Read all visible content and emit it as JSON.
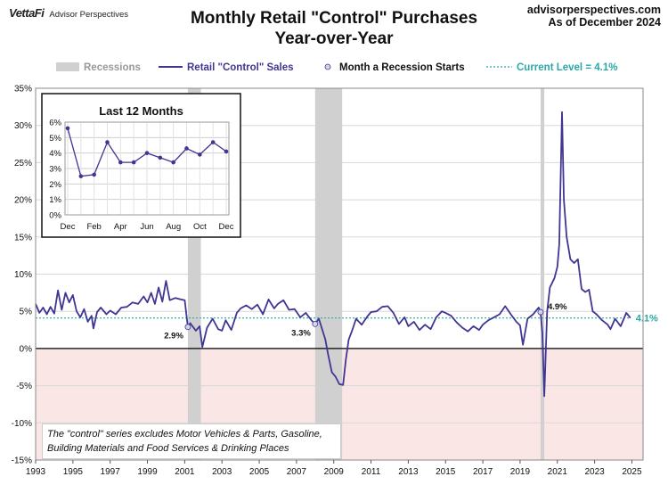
{
  "header": {
    "brand": "VettaFi",
    "brand_sub": "Advisor Perspectives",
    "title_line1": "Monthly Retail \"Control\" Purchases",
    "title_line2": "Year-over-Year",
    "site": "advisorperspectives.com",
    "as_of": "As of December 2024"
  },
  "legend": {
    "recessions": "Recessions",
    "series": "Retail \"Control\" Sales",
    "recession_start": "Month a Recession Starts",
    "current": "Current Level = 4.1%"
  },
  "colors": {
    "series": "#3f3593",
    "recession": "#d0d0d0",
    "current": "#2aa9a6",
    "negative_fill": "#fbe6e6"
  },
  "note": "The \"control\" series excludes Motor Vehicles & Parts, Gasoline, Building Materials and Food Services & Drinking Places",
  "chart_data": [
    {
      "type": "line",
      "title": "Monthly Retail \"Control\" Purchases Year-over-Year",
      "xlabel": "",
      "ylabel": "",
      "xlim": [
        1993,
        2025.6
      ],
      "ylim": [
        -15,
        35
      ],
      "x_ticks": [
        "1993",
        "1995",
        "1997",
        "1999",
        "2001",
        "2003",
        "2005",
        "2007",
        "2009",
        "2011",
        "2013",
        "2015",
        "2017",
        "2019",
        "2021",
        "2023",
        "2025"
      ],
      "y_ticks": [
        "35%",
        "30%",
        "25%",
        "20%",
        "15%",
        "10%",
        "5%",
        "0%",
        "-5%",
        "-10%",
        "-15%"
      ],
      "grid": true,
      "legend_position": "top",
      "recessions": [
        [
          2001.17,
          2001.87
        ],
        [
          2008.0,
          2009.45
        ],
        [
          2020.1,
          2020.3
        ]
      ],
      "recession_start_labels": [
        {
          "x": 2001.17,
          "y": 2.9,
          "label": "2.9%"
        },
        {
          "x": 2008.0,
          "y": 3.3,
          "label": "3.3%"
        },
        {
          "x": 2020.1,
          "y": 4.9,
          "label": "4.9%"
        }
      ],
      "current_level": {
        "value": 4.1,
        "label": "4.1%"
      },
      "series": [
        {
          "name": "Retail \"Control\" Sales",
          "points": [
            [
              1993.0,
              6.0
            ],
            [
              1993.2,
              4.8
            ],
            [
              1993.4,
              5.5
            ],
            [
              1993.6,
              4.6
            ],
            [
              1993.8,
              5.6
            ],
            [
              1994.0,
              4.7
            ],
            [
              1994.2,
              7.8
            ],
            [
              1994.4,
              5.2
            ],
            [
              1994.6,
              7.5
            ],
            [
              1994.8,
              6.2
            ],
            [
              1995.0,
              7.2
            ],
            [
              1995.2,
              5.0
            ],
            [
              1995.4,
              4.2
            ],
            [
              1995.6,
              5.3
            ],
            [
              1995.8,
              3.6
            ],
            [
              1996.0,
              4.4
            ],
            [
              1996.1,
              2.7
            ],
            [
              1996.3,
              4.9
            ],
            [
              1996.5,
              5.5
            ],
            [
              1996.8,
              4.6
            ],
            [
              1997.0,
              5.1
            ],
            [
              1997.3,
              4.6
            ],
            [
              1997.6,
              5.5
            ],
            [
              1997.9,
              5.6
            ],
            [
              1998.2,
              6.2
            ],
            [
              1998.5,
              6.0
            ],
            [
              1998.8,
              7.0
            ],
            [
              1999.0,
              6.2
            ],
            [
              1999.2,
              7.5
            ],
            [
              1999.4,
              6.0
            ],
            [
              1999.6,
              8.2
            ],
            [
              1999.8,
              6.3
            ],
            [
              2000.0,
              9.1
            ],
            [
              2000.2,
              6.5
            ],
            [
              2000.5,
              6.8
            ],
            [
              2000.8,
              6.6
            ],
            [
              2001.0,
              6.5
            ],
            [
              2001.17,
              2.9
            ],
            [
              2001.3,
              3.4
            ],
            [
              2001.6,
              2.4
            ],
            [
              2001.8,
              3.0
            ],
            [
              2001.95,
              0.2
            ],
            [
              2002.2,
              2.8
            ],
            [
              2002.5,
              4.0
            ],
            [
              2002.8,
              2.6
            ],
            [
              2003.0,
              2.4
            ],
            [
              2003.2,
              3.8
            ],
            [
              2003.5,
              2.5
            ],
            [
              2003.8,
              4.8
            ],
            [
              2004.0,
              5.4
            ],
            [
              2004.3,
              5.8
            ],
            [
              2004.6,
              5.3
            ],
            [
              2004.9,
              5.9
            ],
            [
              2005.2,
              4.6
            ],
            [
              2005.5,
              6.6
            ],
            [
              2005.8,
              5.4
            ],
            [
              2006.0,
              6.0
            ],
            [
              2006.3,
              6.5
            ],
            [
              2006.6,
              5.2
            ],
            [
              2006.9,
              5.3
            ],
            [
              2007.2,
              4.2
            ],
            [
              2007.5,
              4.8
            ],
            [
              2007.8,
              3.8
            ],
            [
              2008.0,
              3.3
            ],
            [
              2008.2,
              4.0
            ],
            [
              2008.35,
              2.8
            ],
            [
              2008.55,
              1.2
            ],
            [
              2008.7,
              -0.8
            ],
            [
              2008.9,
              -3.2
            ],
            [
              2009.1,
              -3.8
            ],
            [
              2009.3,
              -4.8
            ],
            [
              2009.5,
              -4.9
            ],
            [
              2009.65,
              -1.5
            ],
            [
              2009.8,
              1.2
            ],
            [
              2010.0,
              2.5
            ],
            [
              2010.2,
              4.0
            ],
            [
              2010.5,
              3.2
            ],
            [
              2010.8,
              4.3
            ],
            [
              2011.0,
              4.9
            ],
            [
              2011.3,
              5.0
            ],
            [
              2011.6,
              5.6
            ],
            [
              2011.9,
              5.7
            ],
            [
              2012.2,
              4.8
            ],
            [
              2012.5,
              3.3
            ],
            [
              2012.8,
              4.2
            ],
            [
              2013.0,
              3.0
            ],
            [
              2013.3,
              3.6
            ],
            [
              2013.6,
              2.5
            ],
            [
              2013.9,
              3.2
            ],
            [
              2014.2,
              2.6
            ],
            [
              2014.5,
              4.2
            ],
            [
              2014.8,
              5.0
            ],
            [
              2015.0,
              4.8
            ],
            [
              2015.3,
              4.4
            ],
            [
              2015.6,
              3.5
            ],
            [
              2015.9,
              2.8
            ],
            [
              2016.2,
              2.3
            ],
            [
              2016.5,
              3.0
            ],
            [
              2016.8,
              2.5
            ],
            [
              2017.0,
              3.2
            ],
            [
              2017.3,
              3.8
            ],
            [
              2017.6,
              4.2
            ],
            [
              2017.9,
              4.6
            ],
            [
              2018.2,
              5.7
            ],
            [
              2018.5,
              4.6
            ],
            [
              2018.8,
              3.6
            ],
            [
              2019.0,
              3.1
            ],
            [
              2019.15,
              0.5
            ],
            [
              2019.4,
              4.0
            ],
            [
              2019.7,
              4.6
            ],
            [
              2020.0,
              5.5
            ],
            [
              2020.1,
              4.9
            ],
            [
              2020.2,
              2.0
            ],
            [
              2020.3,
              -6.4
            ],
            [
              2020.45,
              5.0
            ],
            [
              2020.6,
              8.2
            ],
            [
              2020.85,
              9.5
            ],
            [
              2021.0,
              11.0
            ],
            [
              2021.1,
              14.0
            ],
            [
              2021.2,
              26.0
            ],
            [
              2021.25,
              31.8
            ],
            [
              2021.35,
              20.0
            ],
            [
              2021.5,
              15.0
            ],
            [
              2021.7,
              12.0
            ],
            [
              2021.9,
              11.5
            ],
            [
              2022.1,
              12.0
            ],
            [
              2022.3,
              8.0
            ],
            [
              2022.5,
              7.6
            ],
            [
              2022.7,
              7.9
            ],
            [
              2022.9,
              5.0
            ],
            [
              2023.1,
              4.6
            ],
            [
              2023.4,
              3.8
            ],
            [
              2023.7,
              3.2
            ],
            [
              2023.85,
              2.6
            ],
            [
              2024.1,
              4.0
            ],
            [
              2024.4,
              3.0
            ],
            [
              2024.7,
              4.8
            ],
            [
              2024.92,
              4.1
            ]
          ]
        }
      ]
    },
    {
      "type": "line",
      "title": "Last 12 Months",
      "xlabel": "",
      "ylabel": "",
      "ylim": [
        0,
        6
      ],
      "y_ticks": [
        "6%",
        "5%",
        "4%",
        "3%",
        "2%",
        "1%",
        "0%"
      ],
      "categories": [
        "Dec",
        "Jan",
        "Feb",
        "Mar",
        "Apr",
        "May",
        "Jun",
        "Jul",
        "Aug",
        "Sep",
        "Oct",
        "Nov",
        "Dec"
      ],
      "x_tick_labels": [
        "Dec",
        "Feb",
        "Apr",
        "Jun",
        "Aug",
        "Oct",
        "Dec"
      ],
      "grid": true,
      "series": [
        {
          "name": "",
          "values": [
            5.6,
            2.5,
            2.6,
            4.7,
            3.4,
            3.4,
            4.0,
            3.7,
            3.4,
            4.3,
            3.9,
            4.7,
            4.1
          ]
        }
      ]
    }
  ]
}
